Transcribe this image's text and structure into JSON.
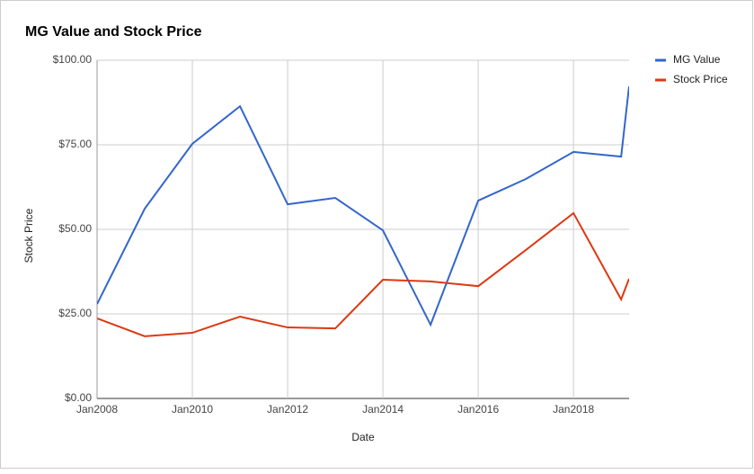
{
  "chart_data": {
    "type": "line",
    "title": "MG Value and Stock Price",
    "x_label": "Date",
    "y_label": "Stock Price",
    "x": [
      "2008-01",
      "2009-01",
      "2010-01",
      "2011-01",
      "2012-01",
      "2013-01",
      "2014-01",
      "2015-01",
      "2016-01",
      "2017-01",
      "2018-01",
      "2019-01",
      "2019-03"
    ],
    "series": [
      {
        "name": "MG Value",
        "color": "#3366cc",
        "values": [
          27.9,
          56.1,
          75.3,
          86.4,
          57.4,
          59.3,
          49.7,
          21.8,
          58.5,
          64.9,
          72.9,
          71.5,
          92.3
        ]
      },
      {
        "name": "Stock Price",
        "color": "#dc3912",
        "values": [
          23.7,
          18.4,
          19.4,
          24.2,
          21.0,
          20.7,
          35.1,
          34.6,
          33.2,
          43.9,
          54.8,
          29.3,
          35.4
        ]
      }
    ],
    "xlim": [
      "2008-01",
      "2019-03"
    ],
    "xticks": [
      {
        "value": "2008-01",
        "label": "Jan2008"
      },
      {
        "value": "2010-01",
        "label": "Jan2010"
      },
      {
        "value": "2012-01",
        "label": "Jan2012"
      },
      {
        "value": "2014-01",
        "label": "Jan2014"
      },
      {
        "value": "2016-01",
        "label": "Jan2016"
      },
      {
        "value": "2018-01",
        "label": "Jan2018"
      }
    ],
    "ylim": [
      0,
      100
    ],
    "yticks": [
      {
        "value": 0,
        "label": "$0.00"
      },
      {
        "value": 25,
        "label": "$25.00"
      },
      {
        "value": 50,
        "label": "$50.00"
      },
      {
        "value": 75,
        "label": "$75.00"
      },
      {
        "value": 100,
        "label": "$100.00"
      }
    ],
    "grid": true,
    "legend": "right"
  }
}
